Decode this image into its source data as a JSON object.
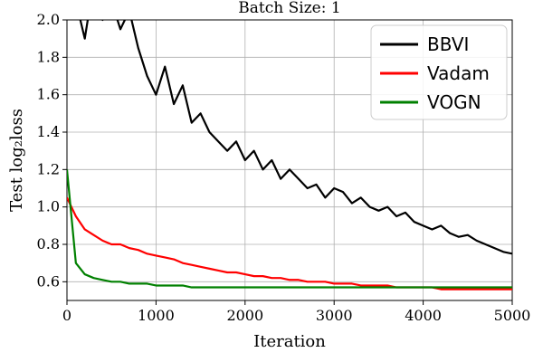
{
  "chart_data": {
    "type": "line",
    "title": "Batch Size: 1",
    "xlabel": "Iteration",
    "ylabel": "Test log₂loss",
    "xlim": [
      0,
      5000
    ],
    "ylim": [
      0.5,
      2.0
    ],
    "x_ticks": [
      0,
      1000,
      2000,
      3000,
      4000,
      5000
    ],
    "x_tick_labels": [
      "0",
      "1000",
      "2000",
      "3000",
      "4000",
      "5000"
    ],
    "y_ticks": [
      0.6,
      0.8,
      1.0,
      1.2,
      1.4,
      1.6,
      1.8,
      2.0
    ],
    "y_tick_labels": [
      "0.6",
      "0.8",
      "1.0",
      "1.2",
      "1.4",
      "1.6",
      "1.8",
      "2.0"
    ],
    "grid": true,
    "legend_position": "top-right",
    "series": [
      {
        "name": "BBVI",
        "color": "#000000",
        "x": [
          0,
          100,
          200,
          300,
          400,
          500,
          600,
          700,
          800,
          900,
          1000,
          1100,
          1200,
          1300,
          1400,
          1500,
          1600,
          1700,
          1800,
          1900,
          2000,
          2100,
          2200,
          2300,
          2400,
          2500,
          2600,
          2700,
          2800,
          2900,
          3000,
          3100,
          3200,
          3300,
          3400,
          3500,
          3600,
          3700,
          3800,
          3900,
          4000,
          4100,
          4200,
          4300,
          4400,
          4500,
          4600,
          4700,
          4800,
          4900,
          5000
        ],
        "y": [
          2.0,
          2.1,
          1.9,
          2.2,
          2.0,
          2.1,
          1.95,
          2.05,
          1.85,
          1.7,
          1.6,
          1.75,
          1.55,
          1.65,
          1.45,
          1.5,
          1.4,
          1.35,
          1.3,
          1.35,
          1.25,
          1.3,
          1.2,
          1.25,
          1.15,
          1.2,
          1.15,
          1.1,
          1.12,
          1.05,
          1.1,
          1.08,
          1.02,
          1.05,
          1.0,
          0.98,
          1.0,
          0.95,
          0.97,
          0.92,
          0.9,
          0.88,
          0.9,
          0.86,
          0.84,
          0.85,
          0.82,
          0.8,
          0.78,
          0.76,
          0.75
        ]
      },
      {
        "name": "Vadam",
        "color": "#ff0000",
        "x": [
          0,
          100,
          200,
          300,
          400,
          500,
          600,
          700,
          800,
          900,
          1000,
          1100,
          1200,
          1300,
          1400,
          1500,
          1600,
          1700,
          1800,
          1900,
          2000,
          2100,
          2200,
          2300,
          2400,
          2500,
          2600,
          2700,
          2800,
          2900,
          3000,
          3100,
          3200,
          3300,
          3400,
          3500,
          3600,
          3700,
          3800,
          3900,
          4000,
          4100,
          4200,
          4300,
          4400,
          4500,
          4600,
          4700,
          4800,
          4900,
          5000
        ],
        "y": [
          1.05,
          0.95,
          0.88,
          0.85,
          0.82,
          0.8,
          0.8,
          0.78,
          0.77,
          0.75,
          0.74,
          0.73,
          0.72,
          0.7,
          0.69,
          0.68,
          0.67,
          0.66,
          0.65,
          0.65,
          0.64,
          0.63,
          0.63,
          0.62,
          0.62,
          0.61,
          0.61,
          0.6,
          0.6,
          0.6,
          0.59,
          0.59,
          0.59,
          0.58,
          0.58,
          0.58,
          0.58,
          0.57,
          0.57,
          0.57,
          0.57,
          0.57,
          0.56,
          0.56,
          0.56,
          0.56,
          0.56,
          0.56,
          0.56,
          0.56,
          0.56
        ]
      },
      {
        "name": "VOGN",
        "color": "#008000",
        "x": [
          0,
          100,
          200,
          300,
          400,
          500,
          600,
          700,
          800,
          900,
          1000,
          1100,
          1200,
          1300,
          1400,
          1500,
          1600,
          1700,
          1800,
          1900,
          2000,
          2100,
          2200,
          2300,
          2400,
          2500,
          2600,
          2700,
          2800,
          2900,
          3000,
          3100,
          3200,
          3300,
          3400,
          3500,
          3600,
          3700,
          3800,
          3900,
          4000,
          4100,
          4200,
          4300,
          4400,
          4500,
          4600,
          4700,
          4800,
          4900,
          5000
        ],
        "y": [
          1.2,
          0.7,
          0.64,
          0.62,
          0.61,
          0.6,
          0.6,
          0.59,
          0.59,
          0.59,
          0.58,
          0.58,
          0.58,
          0.58,
          0.57,
          0.57,
          0.57,
          0.57,
          0.57,
          0.57,
          0.57,
          0.57,
          0.57,
          0.57,
          0.57,
          0.57,
          0.57,
          0.57,
          0.57,
          0.57,
          0.57,
          0.57,
          0.57,
          0.57,
          0.57,
          0.57,
          0.57,
          0.57,
          0.57,
          0.57,
          0.57,
          0.57,
          0.57,
          0.57,
          0.57,
          0.57,
          0.57,
          0.57,
          0.57,
          0.57,
          0.57
        ]
      }
    ]
  }
}
